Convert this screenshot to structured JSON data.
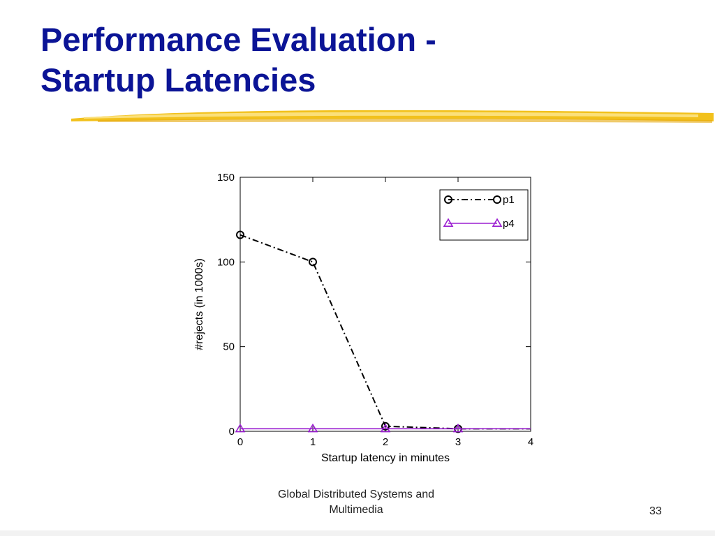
{
  "slide": {
    "title_line1": "Performance Evaluation -",
    "title_line2": "Startup Latencies",
    "title_color": "#0b1496",
    "accent_color": "#f2c11c"
  },
  "footer": {
    "line1": "Global Distributed Systems and",
    "line2": "Multimedia",
    "page_number": "33"
  },
  "chart_data": {
    "type": "line",
    "title": "",
    "xlabel": "Startup latency in minutes",
    "ylabel": "#rejects (in 1000s)",
    "xlim": [
      0,
      4
    ],
    "ylim": [
      0,
      150
    ],
    "x_ticks": [
      "0",
      "1",
      "2",
      "3",
      "4"
    ],
    "y_ticks": [
      "0",
      "50",
      "100",
      "150"
    ],
    "legend_position": "top-right",
    "grid": false,
    "series": [
      {
        "name": "p1",
        "color": "#000000",
        "line_style": "dash-dot",
        "marker": "circle",
        "x": [
          0,
          1,
          2,
          3,
          4
        ],
        "y": [
          116,
          100,
          3,
          1.5,
          1.5
        ]
      },
      {
        "name": "p4",
        "color": "#9b1fd1",
        "line_style": "solid",
        "marker": "triangle",
        "x": [
          0,
          1,
          2,
          3,
          4
        ],
        "y": [
          1.5,
          1.5,
          1.5,
          1.5,
          1.5
        ]
      }
    ]
  }
}
